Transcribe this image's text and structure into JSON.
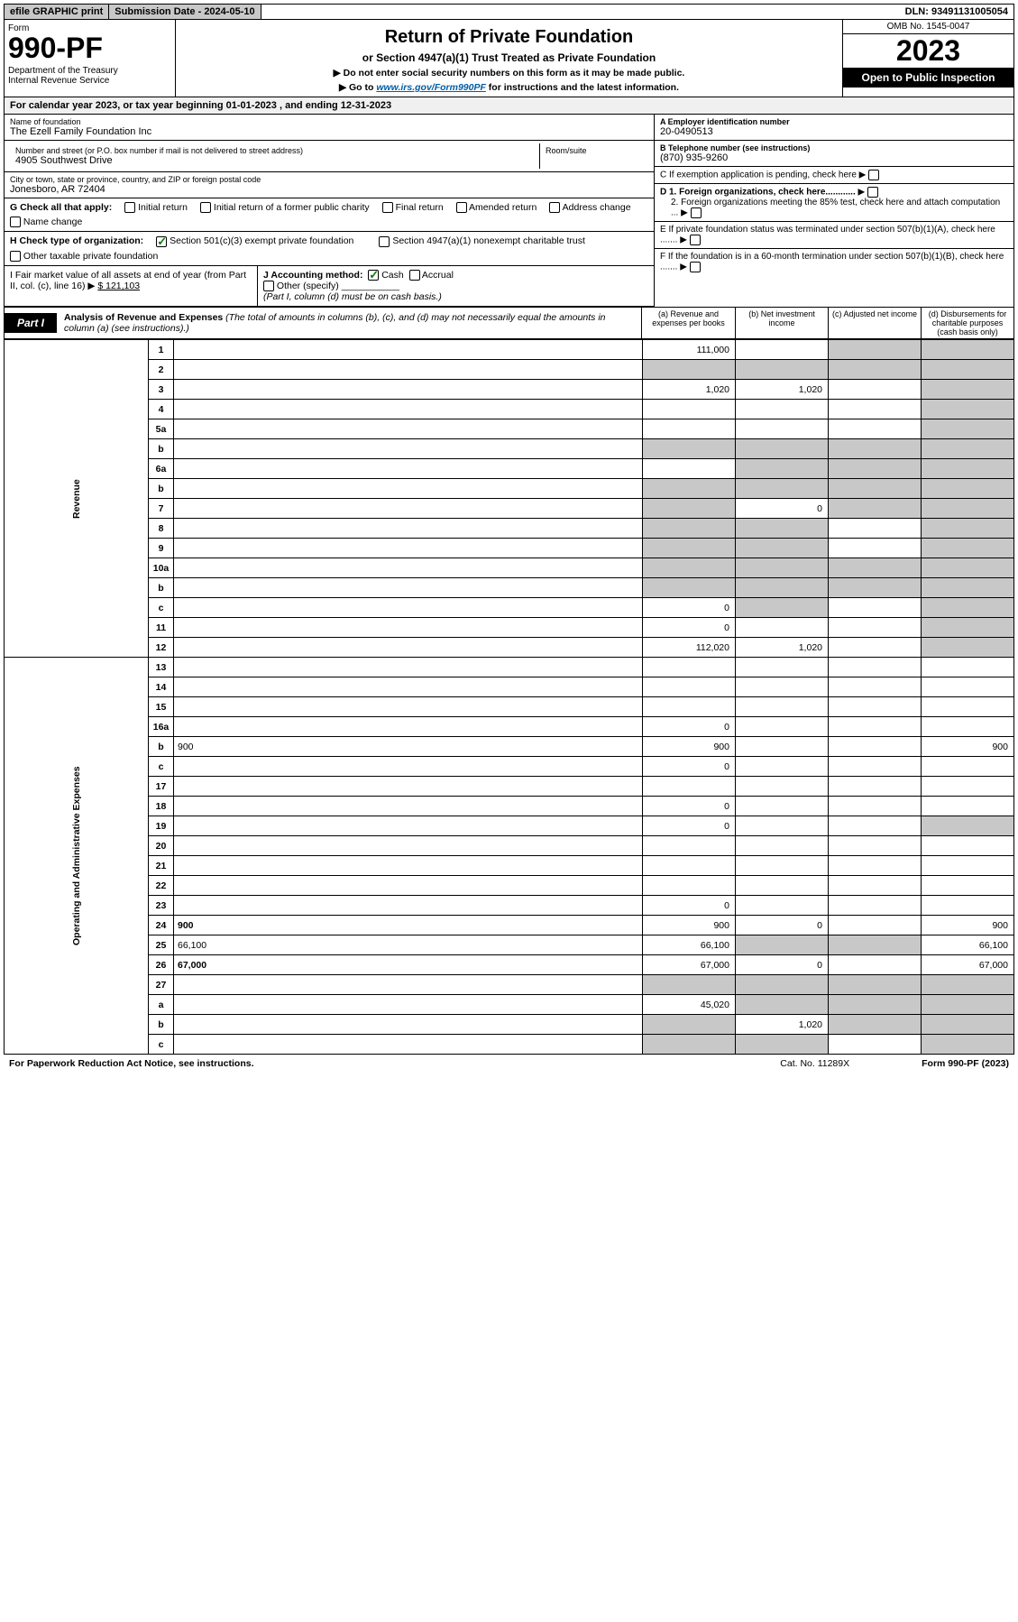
{
  "top": {
    "efile": "efile GRAPHIC print",
    "submission": "Submission Date - 2024-05-10",
    "dln": "DLN: 93491131005054"
  },
  "header": {
    "form_label": "Form",
    "form_number": "990-PF",
    "dept": "Department of the Treasury\nInternal Revenue Service",
    "title": "Return of Private Foundation",
    "subtitle": "or Section 4947(a)(1) Trust Treated as Private Foundation",
    "note1": "▶ Do not enter social security numbers on this form as it may be made public.",
    "note2_pre": "▶ Go to ",
    "note2_link": "www.irs.gov/Form990PF",
    "note2_post": " for instructions and the latest information.",
    "omb": "OMB No. 1545-0047",
    "year": "2023",
    "open": "Open to Public Inspection"
  },
  "cal_year": "For calendar year 2023, or tax year beginning 01-01-2023                                   , and ending 12-31-2023",
  "info": {
    "name_lbl": "Name of foundation",
    "name": "The Ezell Family Foundation Inc",
    "addr_lbl": "Number and street (or P.O. box number if mail is not delivered to street address)",
    "addr": "4905 Southwest Drive",
    "room_lbl": "Room/suite",
    "city_lbl": "City or town, state or province, country, and ZIP or foreign postal code",
    "city": "Jonesboro, AR   72404",
    "a_lbl": "A Employer identification number",
    "a_val": "20-0490513",
    "b_lbl": "B Telephone number (see instructions)",
    "b_val": "(870) 935-9260",
    "c_lbl": "C If exemption application is pending, check here",
    "d1": "D 1. Foreign organizations, check here............",
    "d2": "2. Foreign organizations meeting the 85% test, check here and attach computation ...",
    "e_lbl": "E   If private foundation status was terminated under section 507(b)(1)(A), check here .......",
    "f_lbl": "F   If the foundation is in a 60-month termination under section 507(b)(1)(B), check here .......",
    "g_lbl": "G Check all that apply:",
    "g_items": [
      "Initial return",
      "Initial return of a former public charity",
      "Final return",
      "Amended return",
      "Address change",
      "Name change"
    ],
    "h_lbl": "H Check type of organization:",
    "h_opt1": "Section 501(c)(3) exempt private foundation",
    "h_opt2": "Section 4947(a)(1) nonexempt charitable trust",
    "h_opt3": "Other taxable private foundation",
    "i_lbl": "I Fair market value of all assets at end of year (from Part II, col. (c), line 16) ▶",
    "i_val": "$  121,103",
    "j_lbl": "J Accounting method:",
    "j_cash": "Cash",
    "j_accrual": "Accrual",
    "j_other": "Other (specify)",
    "j_note": "(Part I, column (d) must be on cash basis.)"
  },
  "part1": {
    "label": "Part I",
    "title": "Analysis of Revenue and Expenses",
    "desc": " (The total of amounts in columns (b), (c), and (d) may not necessarily equal the amounts in column (a) (see instructions).)",
    "col_a": "(a)   Revenue and expenses per books",
    "col_b": "(b)   Net investment income",
    "col_c": "(c)   Adjusted net income",
    "col_d": "(d)   Disbursements for charitable purposes (cash basis only)",
    "rev_label": "Revenue",
    "exp_label": "Operating and Administrative Expenses"
  },
  "rows": [
    {
      "n": "1",
      "d": "",
      "a": "111,000",
      "b": "",
      "c": "",
      "cs": true,
      "ds": true
    },
    {
      "n": "2",
      "d": "",
      "a": "",
      "b": "",
      "c": "",
      "as": true,
      "bs": true,
      "cs": true,
      "ds": true
    },
    {
      "n": "3",
      "d": "",
      "a": "1,020",
      "b": "1,020",
      "c": "",
      "ds": true
    },
    {
      "n": "4",
      "d": "",
      "a": "",
      "b": "",
      "c": "",
      "ds": true
    },
    {
      "n": "5a",
      "d": "",
      "a": "",
      "b": "",
      "c": "",
      "ds": true
    },
    {
      "n": "b",
      "d": "",
      "a": "",
      "b": "",
      "c": "",
      "as": true,
      "bs": true,
      "cs": true,
      "ds": true
    },
    {
      "n": "6a",
      "d": "",
      "a": "",
      "b": "",
      "c": "",
      "bs": true,
      "cs": true,
      "ds": true
    },
    {
      "n": "b",
      "d": "",
      "a": "",
      "b": "",
      "c": "",
      "as": true,
      "bs": true,
      "cs": true,
      "ds": true
    },
    {
      "n": "7",
      "d": "",
      "a": "",
      "b": "0",
      "c": "",
      "as": true,
      "cs": true,
      "ds": true
    },
    {
      "n": "8",
      "d": "",
      "a": "",
      "b": "",
      "c": "",
      "as": true,
      "bs": true,
      "ds": true
    },
    {
      "n": "9",
      "d": "",
      "a": "",
      "b": "",
      "c": "",
      "as": true,
      "bs": true,
      "ds": true
    },
    {
      "n": "10a",
      "d": "",
      "a": "",
      "b": "",
      "c": "",
      "as": true,
      "bs": true,
      "cs": true,
      "ds": true
    },
    {
      "n": "b",
      "d": "",
      "a": "",
      "b": "",
      "c": "",
      "as": true,
      "bs": true,
      "cs": true,
      "ds": true
    },
    {
      "n": "c",
      "d": "",
      "a": "0",
      "b": "",
      "c": "",
      "bs": true,
      "ds": true
    },
    {
      "n": "11",
      "d": "",
      "a": "0",
      "b": "",
      "c": "",
      "ds": true
    },
    {
      "n": "12",
      "d": "",
      "a": "112,020",
      "b": "1,020",
      "c": "",
      "bold": true,
      "ds": true
    },
    {
      "n": "13",
      "d": "",
      "a": "",
      "b": "",
      "c": ""
    },
    {
      "n": "14",
      "d": "",
      "a": "",
      "b": "",
      "c": ""
    },
    {
      "n": "15",
      "d": "",
      "a": "",
      "b": "",
      "c": ""
    },
    {
      "n": "16a",
      "d": "",
      "a": "0",
      "b": "",
      "c": ""
    },
    {
      "n": "b",
      "d": "900",
      "a": "900",
      "b": "",
      "c": ""
    },
    {
      "n": "c",
      "d": "",
      "a": "0",
      "b": "",
      "c": ""
    },
    {
      "n": "17",
      "d": "",
      "a": "",
      "b": "",
      "c": ""
    },
    {
      "n": "18",
      "d": "",
      "a": "0",
      "b": "",
      "c": ""
    },
    {
      "n": "19",
      "d": "",
      "a": "0",
      "b": "",
      "c": "",
      "ds": true
    },
    {
      "n": "20",
      "d": "",
      "a": "",
      "b": "",
      "c": ""
    },
    {
      "n": "21",
      "d": "",
      "a": "",
      "b": "",
      "c": ""
    },
    {
      "n": "22",
      "d": "",
      "a": "",
      "b": "",
      "c": ""
    },
    {
      "n": "23",
      "d": "",
      "a": "0",
      "b": "",
      "c": ""
    },
    {
      "n": "24",
      "d": "900",
      "a": "900",
      "b": "0",
      "c": "",
      "bold": true
    },
    {
      "n": "25",
      "d": "66,100",
      "a": "66,100",
      "b": "",
      "c": "",
      "bs": true,
      "cs": true
    },
    {
      "n": "26",
      "d": "67,000",
      "a": "67,000",
      "b": "0",
      "c": "",
      "bold": true
    },
    {
      "n": "27",
      "d": "",
      "a": "",
      "b": "",
      "c": "",
      "as": true,
      "bs": true,
      "cs": true,
      "ds": true
    },
    {
      "n": "a",
      "d": "",
      "a": "45,020",
      "b": "",
      "c": "",
      "bold": true,
      "bs": true,
      "cs": true,
      "ds": true
    },
    {
      "n": "b",
      "d": "",
      "a": "",
      "b": "1,020",
      "c": "",
      "bold": true,
      "as": true,
      "cs": true,
      "ds": true
    },
    {
      "n": "c",
      "d": "",
      "a": "",
      "b": "",
      "c": "",
      "bold": true,
      "as": true,
      "bs": true,
      "ds": true
    }
  ],
  "footer": {
    "left": "For Paperwork Reduction Act Notice, see instructions.",
    "mid": "Cat. No. 11289X",
    "right": "Form 990-PF (2023)"
  }
}
